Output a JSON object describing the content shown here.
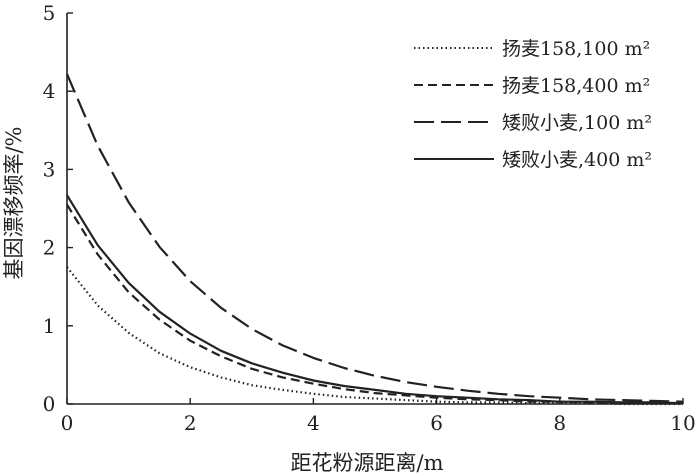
{
  "chart_data": {
    "type": "line",
    "title": "",
    "xlabel": "距花粉源距离/m",
    "ylabel": "基因漂移频率/%",
    "xlim": [
      0,
      10
    ],
    "ylim": [
      0,
      5
    ],
    "xticks": [
      "0",
      "2",
      "4",
      "6",
      "8",
      "10"
    ],
    "yticks": [
      "0",
      "1",
      "2",
      "3",
      "4",
      "5"
    ],
    "grid": false,
    "legend_position": "top-right",
    "x": [
      0,
      0.5,
      1,
      1.5,
      2,
      2.5,
      3,
      3.5,
      4,
      4.5,
      5,
      5.5,
      6,
      6.5,
      7,
      7.5,
      8,
      8.5,
      9,
      9.5,
      10
    ],
    "series": [
      {
        "name": "扬麦158,100 m²",
        "style": "dotted",
        "values": [
          1.75,
          1.26,
          0.91,
          0.65,
          0.47,
          0.34,
          0.24,
          0.18,
          0.13,
          0.09,
          0.07,
          0.05,
          0.03,
          0.02,
          0.02,
          0.01,
          0.01,
          0.01,
          0.0,
          0.0,
          0.0
        ]
      },
      {
        "name": "扬麦158,400 m²",
        "style": "short-dash",
        "values": [
          2.55,
          1.91,
          1.43,
          1.08,
          0.81,
          0.61,
          0.45,
          0.34,
          0.26,
          0.19,
          0.14,
          0.11,
          0.08,
          0.06,
          0.05,
          0.03,
          0.03,
          0.02,
          0.01,
          0.01,
          0.01
        ]
      },
      {
        "name": "矮败小麦,100 m²",
        "style": "long-dash",
        "values": [
          4.22,
          3.3,
          2.58,
          2.01,
          1.57,
          1.23,
          0.96,
          0.75,
          0.59,
          0.46,
          0.36,
          0.28,
          0.22,
          0.17,
          0.13,
          0.1,
          0.08,
          0.06,
          0.05,
          0.04,
          0.03
        ]
      },
      {
        "name": "矮败小麦,400 m²",
        "style": "solid",
        "values": [
          2.67,
          2.03,
          1.55,
          1.18,
          0.9,
          0.68,
          0.52,
          0.4,
          0.3,
          0.23,
          0.18,
          0.13,
          0.1,
          0.08,
          0.06,
          0.05,
          0.03,
          0.03,
          0.02,
          0.02,
          0.01
        ]
      }
    ]
  }
}
